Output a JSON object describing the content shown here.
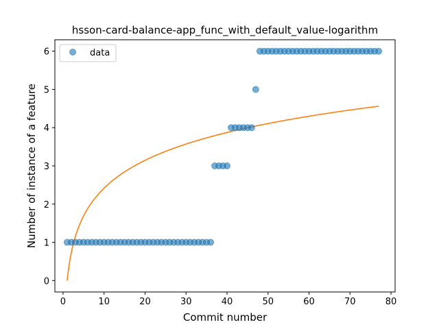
{
  "chart_data": {
    "type": "scatter",
    "title": "hsson-card-balance-app_func_with_default_value-logarithm",
    "xlabel": "Commit number",
    "ylabel": "Number of instance of a feature",
    "xlim": [
      -2,
      81
    ],
    "ylim": [
      -0.3,
      6.3
    ],
    "xticks": [
      0,
      10,
      20,
      30,
      40,
      50,
      60,
      70,
      80
    ],
    "yticks": [
      0,
      1,
      2,
      3,
      4,
      5,
      6
    ],
    "grid": false,
    "legend": {
      "placement": "top-left",
      "entries": [
        "data"
      ]
    },
    "colors": {
      "data": "#1f77b4",
      "fit": "#ff7f0e"
    },
    "series": [
      {
        "name": "data",
        "kind": "scatter",
        "x": [
          1,
          2,
          3,
          4,
          5,
          6,
          7,
          8,
          9,
          10,
          11,
          12,
          13,
          14,
          15,
          16,
          17,
          18,
          19,
          20,
          21,
          22,
          23,
          24,
          25,
          26,
          27,
          28,
          29,
          30,
          31,
          32,
          33,
          34,
          35,
          36,
          37,
          38,
          39,
          40,
          41,
          42,
          43,
          44,
          45,
          46,
          47,
          48,
          49,
          50,
          51,
          52,
          53,
          54,
          55,
          56,
          57,
          58,
          59,
          60,
          61,
          62,
          63,
          64,
          65,
          66,
          67,
          68,
          69,
          70,
          71,
          72,
          73,
          74,
          75,
          76,
          77
        ],
        "y": [
          1,
          1,
          1,
          1,
          1,
          1,
          1,
          1,
          1,
          1,
          1,
          1,
          1,
          1,
          1,
          1,
          1,
          1,
          1,
          1,
          1,
          1,
          1,
          1,
          1,
          1,
          1,
          1,
          1,
          1,
          1,
          1,
          1,
          1,
          1,
          1,
          3,
          3,
          3,
          3,
          4,
          4,
          4,
          4,
          4,
          4,
          5,
          6,
          6,
          6,
          6,
          6,
          6,
          6,
          6,
          6,
          6,
          6,
          6,
          6,
          6,
          6,
          6,
          6,
          6,
          6,
          6,
          6,
          6,
          6,
          6,
          6,
          6,
          6,
          6,
          6,
          6
        ]
      },
      {
        "kind": "line",
        "model": "logarithmic",
        "a": 0,
        "b": 1.05,
        "x_range": [
          1,
          77
        ]
      }
    ]
  }
}
